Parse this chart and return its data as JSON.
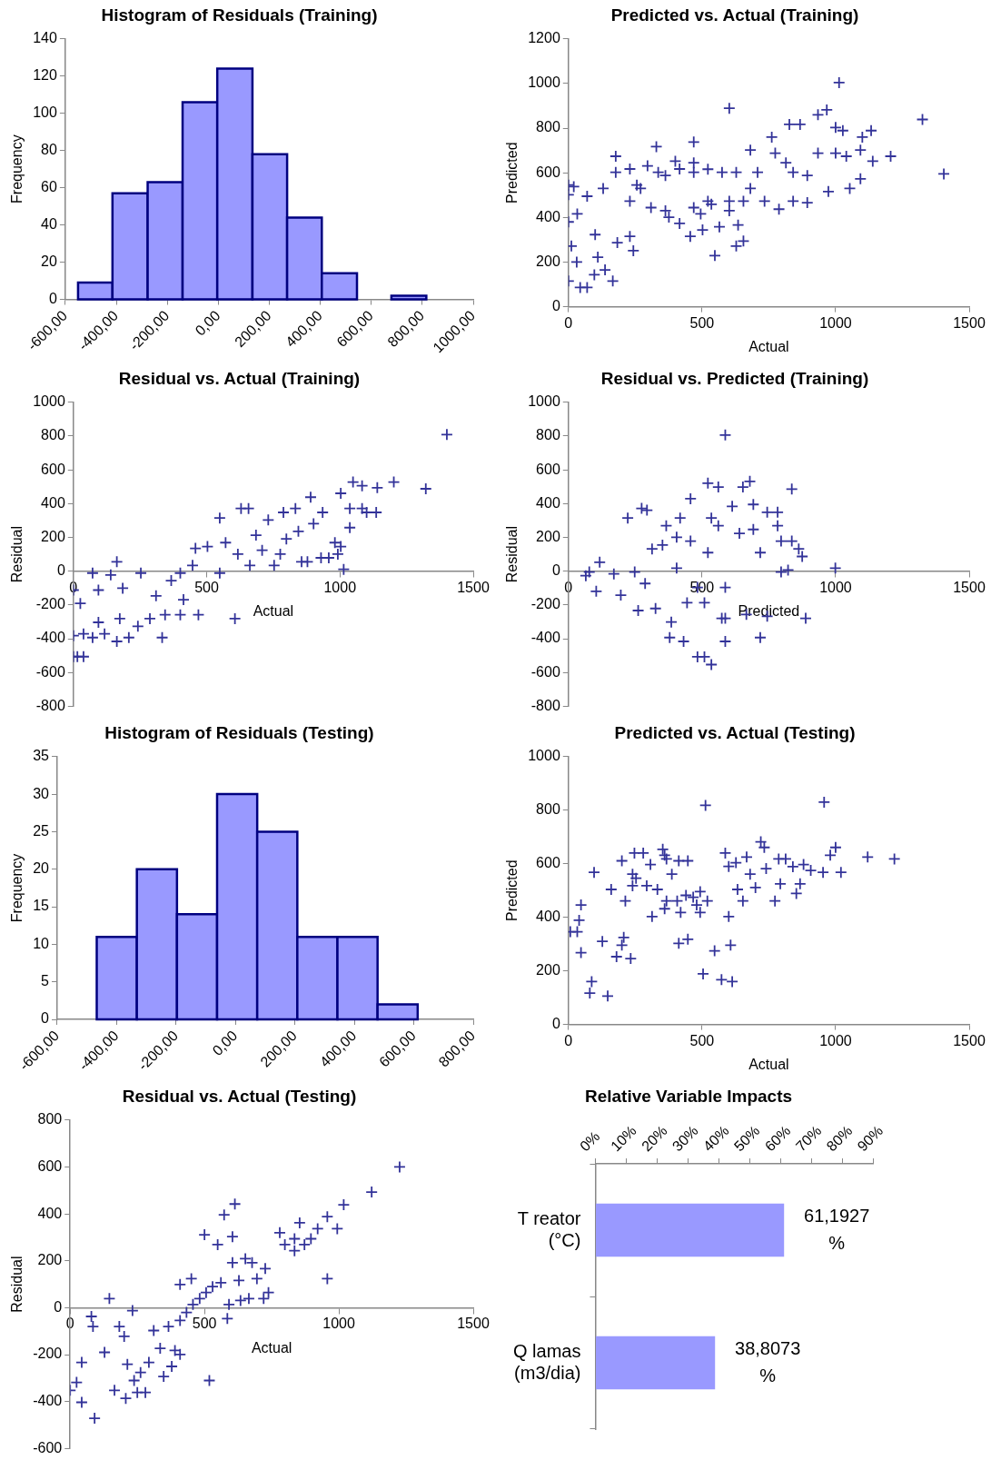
{
  "chart_data": [
    {
      "type": "histogram",
      "title": "Histogram of Residuals (Training)",
      "ylabel": "Frequency",
      "bins": [
        -550,
        -415,
        -277,
        -140,
        -4,
        134,
        270,
        406,
        544,
        679,
        816
      ],
      "values": [
        9,
        57,
        63,
        106,
        124,
        78,
        44,
        14,
        0,
        2
      ],
      "color": "#9999ff",
      "xlim": [
        -600,
        1000
      ],
      "xticks": [
        {
          "value": -600,
          "label": "-600,00"
        },
        {
          "value": -400,
          "label": "-400,00"
        },
        {
          "value": -200,
          "label": "-200,00"
        },
        {
          "value": 0,
          "label": "0,00"
        },
        {
          "value": 200,
          "label": "200,00"
        },
        {
          "value": 400,
          "label": "400,00"
        },
        {
          "value": 600,
          "label": "600,00"
        },
        {
          "value": 800,
          "label": "800,00"
        },
        {
          "value": 1000,
          "label": "1000,00"
        }
      ],
      "ylim": [
        0,
        140
      ],
      "yticks": [
        0,
        20,
        40,
        60,
        80,
        100,
        120,
        140
      ],
      "grid": false,
      "legend": false
    },
    {
      "type": "scatter",
      "title": "Predicted vs. Actual (Training)",
      "xlabel": "Actual",
      "ylabel": "Predicted",
      "marker": "cross",
      "xlim": [
        0,
        1500
      ],
      "xticks": [
        0,
        500,
        1000,
        1500
      ],
      "ylim": [
        0,
        1200
      ],
      "yticks": [
        0,
        200,
        400,
        600,
        800,
        1000,
        1200
      ],
      "grid": false,
      "legend": false,
      "series": [
        {
          "color": "#333399",
          "x": [
            0,
            0,
            20,
            0,
            33,
            11,
            31,
            0,
            44,
            70,
            97,
            110,
            100,
            70,
            137,
            166,
            130,
            177,
            183,
            230,
            243,
            230,
            256,
            329,
            309,
            336,
            363,
            400,
            376,
            416,
            456,
            469,
            502,
            469,
            469,
            548,
            565,
            522,
            575,
            602,
            628,
            655,
            635,
            628,
            655,
            681,
            602,
            708,
            734,
            761,
            774,
            788,
            814,
            827,
            867,
            841,
            894,
            934,
            934,
            967,
            1000,
            1000,
            1013,
            1027,
            1040,
            1053,
            1093,
            1093,
            1100,
            1133,
            1139,
            1206,
            1325,
            1405,
            973,
            894,
            841,
            522,
            416,
            270,
            296,
            230,
            177,
            363,
            469,
            535,
            602,
            681,
            495
          ],
          "values": [
            545,
            502,
            538,
            380,
            416,
            272,
            200,
            115,
            86,
            86,
            143,
            222,
            323,
            495,
            165,
            115,
            530,
            602,
            287,
            315,
            251,
            617,
            545,
            717,
            444,
            602,
            588,
            652,
            401,
            373,
            315,
            738,
            344,
            602,
            645,
            229,
            358,
            616,
            602,
            889,
            272,
            294,
            366,
            602,
            473,
            702,
            473,
            602,
            473,
            760,
            688,
            437,
            645,
            817,
            817,
            473,
            466,
            860,
            688,
            882,
            803,
            688,
            1004,
            789,
            674,
            530,
            573,
            702,
            760,
            789,
            652,
            674,
            839,
            595,
            516,
            588,
            602,
            473,
            617,
            530,
            631,
            473,
            674,
            430,
            444,
            459,
            430,
            530,
            416
          ]
        }
      ]
    },
    {
      "type": "scatter",
      "title": "Residual vs. Actual (Training)",
      "xlabel": "Actual",
      "ylabel": "Residual",
      "marker": "cross",
      "xlim": [
        0,
        1500
      ],
      "xticks": [
        0,
        500,
        1000,
        1500
      ],
      "ylim": [
        -800,
        1000
      ],
      "yticks": [
        -800,
        -600,
        -400,
        -200,
        0,
        200,
        400,
        600,
        800,
        1000
      ],
      "grid": false,
      "legend": false,
      "series": [
        {
          "color": "#333399",
          "x": [
            0,
            0,
            15,
            38,
            0,
            38,
            72,
            72,
            26,
            94,
            94,
            117,
            163,
            140,
            163,
            185,
            174,
            208,
            253,
            242,
            287,
            310,
            333,
            344,
            367,
            401,
            413,
            401,
            447,
            469,
            458,
            503,
            549,
            549,
            571,
            606,
            629,
            657,
            617,
            662,
            685,
            708,
            731,
            753,
            776,
            788,
            799,
            833,
            844,
            856,
            878,
            890,
            901,
            935,
            929,
            958,
            981,
            992,
            1003,
            1003,
            1014,
            1037,
            1037,
            1049,
            1083,
            1083,
            1100,
            1136,
            1140,
            1202,
            1322,
            1401
          ],
          "values": [
            -112,
            -506,
            -506,
            -506,
            -382,
            -371,
            -393,
            -11,
            -191,
            -112,
            -303,
            -371,
            56,
            -22,
            -416,
            -101,
            -281,
            -393,
            -11,
            -326,
            -281,
            -146,
            -393,
            -258,
            -56,
            -11,
            -169,
            -258,
            34,
            -258,
            135,
            146,
            315,
            -11,
            169,
            -281,
            371,
            371,
            101,
            34,
            213,
            124,
            303,
            34,
            101,
            348,
            191,
            371,
            236,
            56,
            56,
            438,
            281,
            348,
            79,
            79,
            169,
            101,
            146,
            461,
            11,
            258,
            371,
            528,
            506,
            371,
            348,
            348,
            494,
            528,
            488,
            809
          ]
        }
      ]
    },
    {
      "type": "scatter",
      "title": "Residual vs. Predicted (Training)",
      "xlabel": "Predicted",
      "ylabel": "Residual",
      "marker": "cross",
      "xlim": [
        0,
        1500
      ],
      "xticks": [
        0,
        500,
        1000,
        1500
      ],
      "ylim": [
        -800,
        1000
      ],
      "yticks": [
        -800,
        -600,
        -400,
        -200,
        0,
        200,
        400,
        600,
        800,
        1000
      ],
      "grid": false,
      "legend": false,
      "series": [
        {
          "color": "#333399",
          "x": [
            78,
            65,
            117,
            104,
            170,
            196,
            222,
            274,
            294,
            248,
            261,
            287,
            326,
            313,
            366,
            352,
            385,
            379,
            418,
            457,
            431,
            444,
            405,
            483,
            509,
            535,
            522,
            561,
            587,
            522,
            561,
            574,
            587,
            613,
            587,
            653,
            679,
            666,
            692,
            692,
            718,
            718,
            744,
            744,
            783,
            783,
            796,
            796,
            822,
            836,
            836,
            862,
            875,
            888,
            999,
            483,
            535,
            457,
            509,
            587,
            640,
            405
          ],
          "values": [
            -5,
            -27,
            53,
            -119,
            -16,
            -142,
            315,
            372,
            361,
            -5,
            -233,
            -73,
            -221,
            132,
            269,
            155,
            -301,
            -393,
            315,
            429,
            -416,
            -187,
            18,
            -507,
            -507,
            -553,
            521,
            498,
            806,
            110,
            269,
            -279,
            -416,
            384,
            -96,
            498,
            532,
            -256,
            395,
            247,
            110,
            -393,
            -267,
            349,
            349,
            269,
            178,
            -5,
            7,
            486,
            178,
            132,
            87,
            -279,
            18,
            -96,
            315,
            178,
            -187,
            -279,
            224,
            201
          ]
        }
      ]
    },
    {
      "type": "histogram",
      "title": "Histogram of Residuals (Testing)",
      "ylabel": "Frequency",
      "bins": [
        -467,
        -332,
        -197,
        -62,
        73,
        208,
        343,
        478,
        613
      ],
      "values": [
        11,
        20,
        14,
        30,
        25,
        11,
        11,
        2
      ],
      "color": "#9999ff",
      "xlim": [
        -600,
        800
      ],
      "xticks": [
        {
          "value": -600,
          "label": "-600,00"
        },
        {
          "value": -400,
          "label": "-400,00"
        },
        {
          "value": -200,
          "label": "-200,00"
        },
        {
          "value": 0,
          "label": "0,00"
        },
        {
          "value": 200,
          "label": "200,00"
        },
        {
          "value": 400,
          "label": "400,00"
        },
        {
          "value": 600,
          "label": "600,00"
        },
        {
          "value": 800,
          "label": "800,00"
        }
      ],
      "ylim": [
        0,
        35
      ],
      "yticks": [
        0,
        5,
        10,
        15,
        20,
        25,
        30,
        35
      ],
      "grid": false,
      "legend": false
    },
    {
      "type": "scatter",
      "title": "Predicted vs. Actual (Testing)",
      "xlabel": "Actual",
      "ylabel": "Predicted",
      "marker": "cross",
      "xlim": [
        0,
        1500
      ],
      "xticks": [
        0,
        500,
        1000,
        1500
      ],
      "ylim": [
        0,
        1000
      ],
      "yticks": [
        0,
        200,
        400,
        600,
        800,
        1000
      ],
      "grid": false,
      "legend": false,
      "series": [
        {
          "color": "#333399",
          "x": [
            7,
            33,
            47,
            40,
            47,
            87,
            80,
            147,
            96,
            127,
            160,
            180,
            207,
            213,
            233,
            200,
            200,
            240,
            247,
            240,
            253,
            280,
            293,
            307,
            333,
            313,
            353,
            360,
            367,
            387,
            413,
            447,
            360,
            367,
            407,
            413,
            420,
            447,
            467,
            480,
            493,
            520,
            513,
            504,
            547,
            573,
            613,
            607,
            600,
            587,
            600,
            627,
            633,
            653,
            667,
            680,
            700,
            720,
            733,
            740,
            773,
            787,
            793,
            813,
            840,
            853,
            867,
            880,
            907,
            953,
            957,
            980,
            1000,
            1020,
            1120,
            1220,
            493,
            440
          ],
          "values": [
            346,
            346,
            446,
            389,
            268,
            160,
            117,
            106,
            568,
            310,
            504,
            253,
            325,
            461,
            246,
            296,
            611,
            561,
            640,
            518,
            546,
            640,
            518,
            597,
            504,
            403,
            654,
            632,
            618,
            561,
            611,
            611,
            432,
            461,
            461,
            303,
            418,
            318,
            475,
            446,
            418,
            461,
            818,
            189,
            275,
            167,
            160,
            296,
            403,
            640,
            590,
            604,
            504,
            461,
            625,
            561,
            511,
            682,
            661,
            582,
            461,
            618,
            525,
            618,
            589,
            489,
            525,
            597,
            575,
            568,
            830,
            632,
            661,
            568,
            625,
            618,
            496,
            482
          ]
        }
      ]
    },
    {
      "type": "scatter",
      "title": "Residual vs. Actual (Testing)",
      "xlabel": "Actual",
      "ylabel": "Residual",
      "marker": "cross",
      "xlim": [
        0,
        1500
      ],
      "xticks": [
        0,
        500,
        1000,
        1500
      ],
      "ylim": [
        -600,
        800
      ],
      "yticks": [
        -600,
        -400,
        -200,
        0,
        200,
        400,
        600,
        800
      ],
      "grid": false,
      "legend": false,
      "series": [
        {
          "color": "#333399",
          "x": [
            0,
            24,
            43,
            43,
            91,
            79,
            85,
            128,
            146,
            165,
            183,
            201,
            213,
            207,
            232,
            238,
            250,
            262,
            280,
            293,
            311,
            335,
            348,
            366,
            378,
            390,
            409,
            409,
            409,
            433,
            451,
            457,
            482,
            500,
            506,
            518,
            530,
            549,
            561,
            573,
            585,
            591,
            604,
            613,
            604,
            628,
            634,
            652,
            665,
            677,
            695,
            720,
            726,
            738,
            780,
            799,
            835,
            835,
            854,
            872,
            896,
            921,
            957,
            957,
            994,
            1018,
            1122,
            1226
          ],
          "values": [
            -352,
            -318,
            -233,
            -403,
            -471,
            -37,
            -80,
            -190,
            39,
            -352,
            -80,
            -122,
            -241,
            -386,
            -12,
            -310,
            -361,
            -276,
            -361,
            -233,
            -97,
            -173,
            -293,
            -80,
            -250,
            -182,
            -199,
            99,
            -54,
            -20,
            124,
            14,
            39,
            311,
            65,
            -310,
            90,
            269,
            107,
            396,
            -46,
            14,
            303,
            442,
            192,
            116,
            31,
            209,
            39,
            192,
            124,
            39,
            167,
            65,
            320,
            269,
            243,
            294,
            362,
            269,
            294,
            337,
            388,
            124,
            337,
            439,
            493,
            600
          ]
        }
      ]
    },
    {
      "type": "bar",
      "orientation": "horizontal",
      "title": "Relative Variable Impacts",
      "categories": [
        "T reator (°C)",
        "Q lamas (m3/dia)"
      ],
      "values": [
        61.1927,
        38.8073
      ],
      "value_labels": [
        "61,1927 %",
        "38,8073 %"
      ],
      "color": "#9999ff",
      "xlim": [
        0,
        90
      ],
      "xticks": [
        {
          "value": 0,
          "label": "0%"
        },
        {
          "value": 10,
          "label": "10%"
        },
        {
          "value": 20,
          "label": "20%"
        },
        {
          "value": 30,
          "label": "30%"
        },
        {
          "value": 40,
          "label": "40%"
        },
        {
          "value": 50,
          "label": "50%"
        },
        {
          "value": 60,
          "label": "60%"
        },
        {
          "value": 70,
          "label": "70%"
        },
        {
          "value": 80,
          "label": "80%"
        },
        {
          "value": 90,
          "label": "90%"
        }
      ],
      "grid": false,
      "legend": false
    }
  ]
}
